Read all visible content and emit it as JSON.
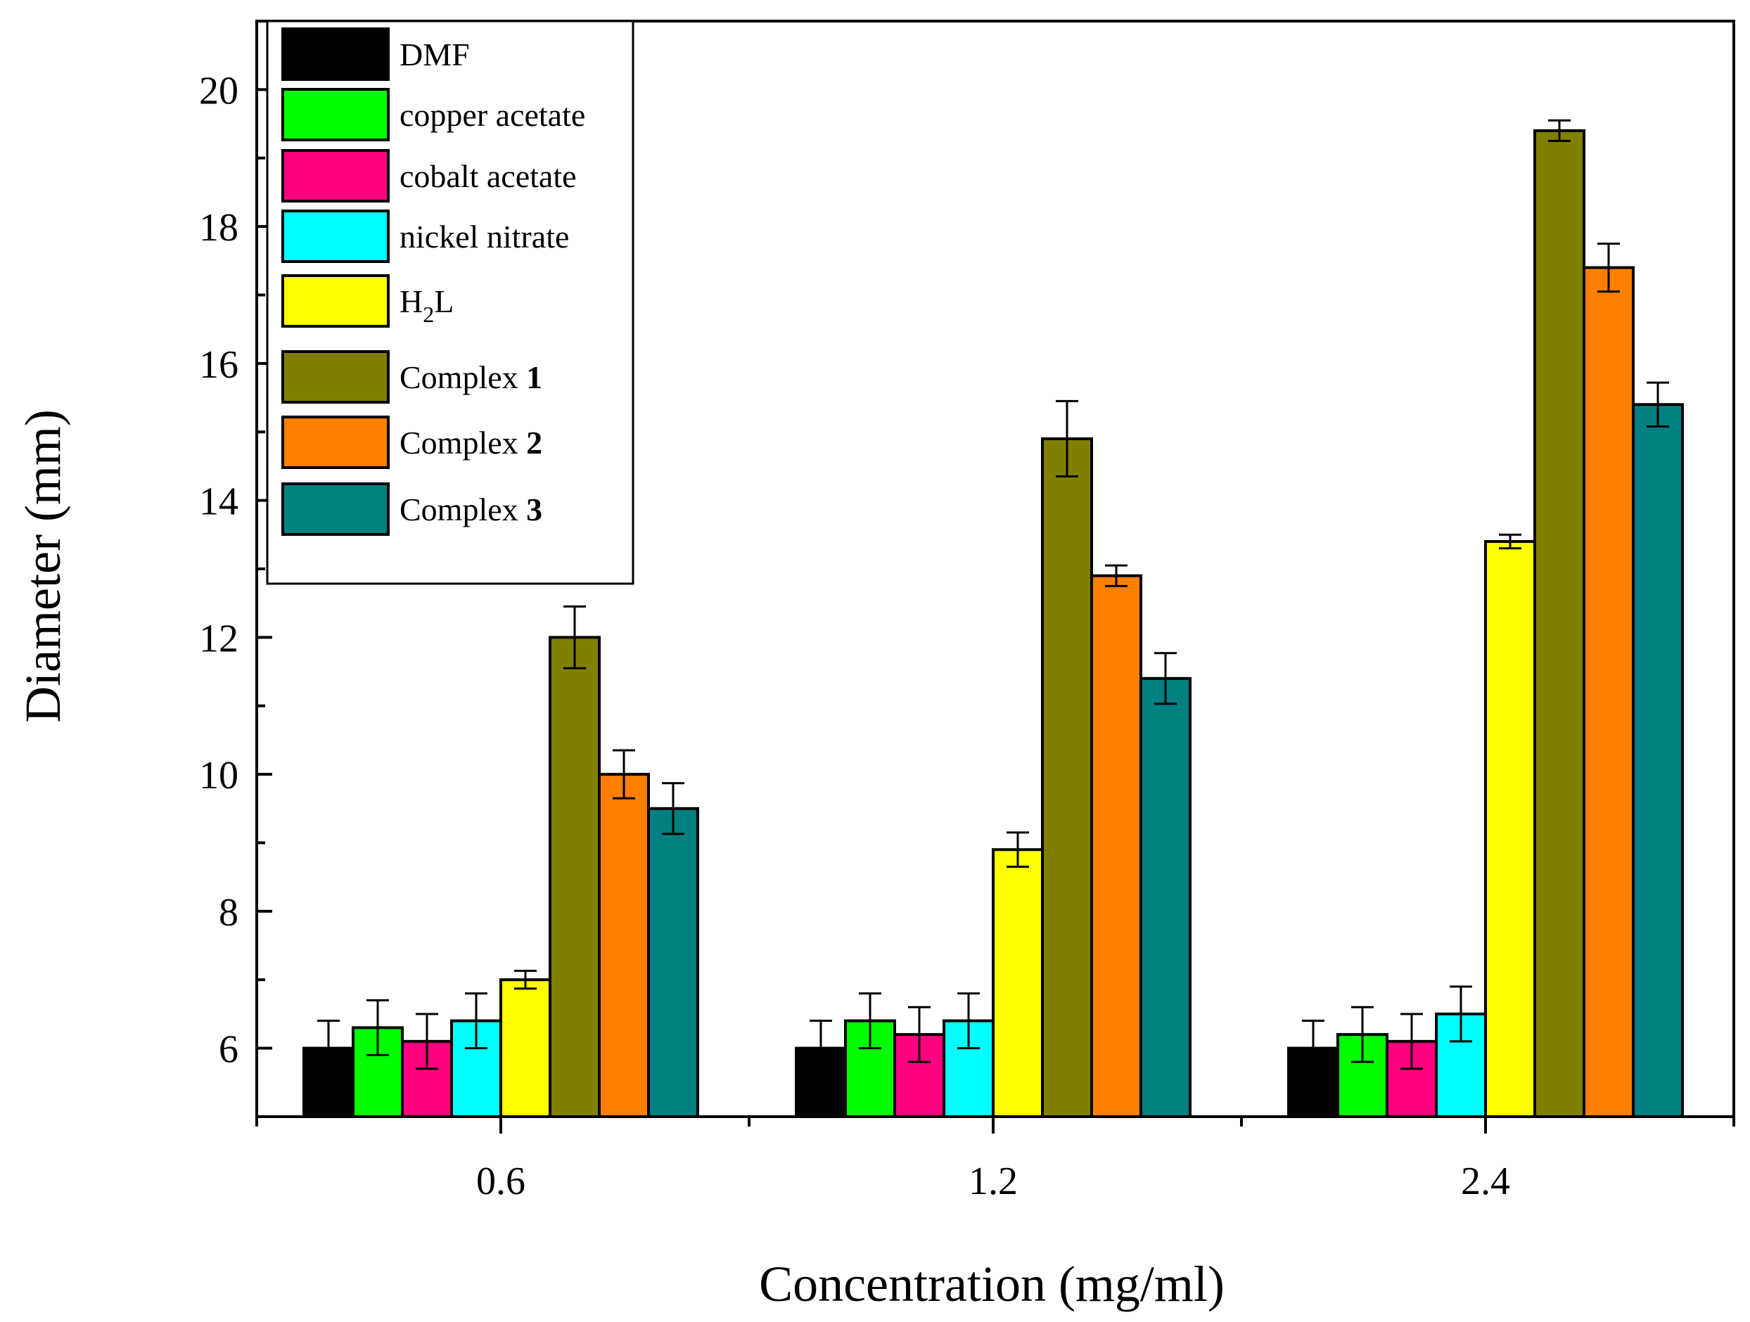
{
  "chart_data": {
    "type": "bar",
    "xlabel": "Concentration (mg/ml)",
    "ylabel": "Diameter (mm)",
    "ylim": [
      5,
      21
    ],
    "yticks": [
      "6",
      "8",
      "10",
      "12",
      "14",
      "16",
      "18",
      "20"
    ],
    "categories": [
      "0.6",
      "1.2",
      "2.4"
    ],
    "series": [
      {
        "name": "DMF",
        "color": "#000000",
        "values": [
          6.0,
          6.0,
          6.0
        ],
        "errors": [
          0.4,
          0.4,
          0.4
        ]
      },
      {
        "name": "copper acetate",
        "color": "#00ff00",
        "values": [
          6.3,
          6.4,
          6.2
        ],
        "errors": [
          0.4,
          0.4,
          0.4
        ]
      },
      {
        "name": "cobalt acetate",
        "color": "#ff0080",
        "values": [
          6.1,
          6.2,
          6.1
        ],
        "errors": [
          0.4,
          0.4,
          0.4
        ]
      },
      {
        "name": "nickel nitrate",
        "color": "#00ffff",
        "values": [
          6.4,
          6.4,
          6.5
        ],
        "errors": [
          0.4,
          0.4,
          0.4
        ]
      },
      {
        "name": "H2L",
        "legend_base": "H",
        "legend_sub": "2",
        "legend_rest": "L",
        "color": "#ffff00",
        "values": [
          7.0,
          8.9,
          13.4
        ],
        "errors": [
          0.13,
          0.25,
          0.1
        ]
      },
      {
        "name": "Complex 1",
        "legend_base": "Complex ",
        "legend_bold": "1",
        "color": "#808000",
        "values": [
          12.0,
          14.9,
          19.4
        ],
        "errors": [
          0.45,
          0.55,
          0.15
        ]
      },
      {
        "name": "Complex 2",
        "legend_base": "Complex ",
        "legend_bold": "2",
        "color": "#ff8000",
        "values": [
          10.0,
          12.9,
          17.4
        ],
        "errors": [
          0.35,
          0.15,
          0.35
        ]
      },
      {
        "name": "Complex 3",
        "legend_base": "Complex ",
        "legend_bold": "3",
        "color": "#008080",
        "values": [
          9.5,
          11.4,
          15.4
        ],
        "errors": [
          0.37,
          0.37,
          0.32
        ]
      }
    ]
  }
}
